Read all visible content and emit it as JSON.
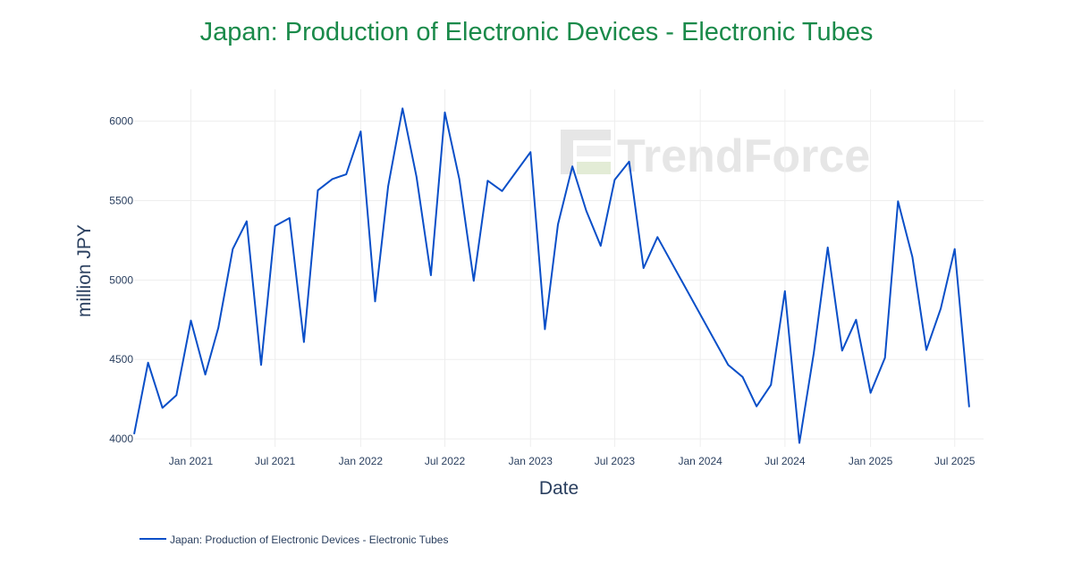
{
  "chart_data": {
    "type": "line",
    "title": "Japan: Production of Electronic Devices - Electronic Tubes",
    "xlabel": "Date",
    "ylabel": "million JPY",
    "ylim": [
      3950,
      6200
    ],
    "xlim": [
      "2020-09-01",
      "2025-09-01"
    ],
    "y_ticks": [
      4000,
      4500,
      5000,
      5500,
      6000
    ],
    "x_ticks": [
      {
        "date": "2021-01-01",
        "label": "Jan 2021"
      },
      {
        "date": "2021-07-01",
        "label": "Jul 2021"
      },
      {
        "date": "2022-01-01",
        "label": "Jan 2022"
      },
      {
        "date": "2022-07-01",
        "label": "Jul 2022"
      },
      {
        "date": "2023-01-01",
        "label": "Jan 2023"
      },
      {
        "date": "2023-07-01",
        "label": "Jul 2023"
      },
      {
        "date": "2024-01-01",
        "label": "Jan 2024"
      },
      {
        "date": "2024-07-01",
        "label": "Jul 2024"
      },
      {
        "date": "2025-01-01",
        "label": "Jan 2025"
      },
      {
        "date": "2025-07-01",
        "label": "Jul 2025"
      }
    ],
    "grid": true,
    "legend_position": "bottom-left",
    "series": [
      {
        "name": "Japan: Production of Electronic Devices - Electronic Tubes",
        "color": "#0a4fc8",
        "points": [
          [
            "2020-09-01",
            4030
          ],
          [
            "2020-10-01",
            4480
          ],
          [
            "2020-11-01",
            4195
          ],
          [
            "2020-12-01",
            4275
          ],
          [
            "2021-01-01",
            4745
          ],
          [
            "2021-02-01",
            4405
          ],
          [
            "2021-03-01",
            4700
          ],
          [
            "2021-04-01",
            5195
          ],
          [
            "2021-05-01",
            5370
          ],
          [
            "2021-06-01",
            4465
          ],
          [
            "2021-07-01",
            5340
          ],
          [
            "2021-08-01",
            5390
          ],
          [
            "2021-09-01",
            4610
          ],
          [
            "2021-10-01",
            5565
          ],
          [
            "2021-11-01",
            5635
          ],
          [
            "2021-12-01",
            5665
          ],
          [
            "2022-01-01",
            5935
          ],
          [
            "2022-02-01",
            4865
          ],
          [
            "2022-03-01",
            5590
          ],
          [
            "2022-04-01",
            6080
          ],
          [
            "2022-05-01",
            5650
          ],
          [
            "2022-06-01",
            5030
          ],
          [
            "2022-07-01",
            6055
          ],
          [
            "2022-08-01",
            5635
          ],
          [
            "2022-09-01",
            4995
          ],
          [
            "2022-10-01",
            5625
          ],
          [
            "2022-11-01",
            5560
          ],
          [
            "2022-12-01",
            5680
          ],
          [
            "2023-01-01",
            5805
          ],
          [
            "2023-02-01",
            4690
          ],
          [
            "2023-03-01",
            5350
          ],
          [
            "2023-04-01",
            5715
          ],
          [
            "2023-05-01",
            5435
          ],
          [
            "2023-06-01",
            5215
          ],
          [
            "2023-07-01",
            5630
          ],
          [
            "2023-08-01",
            5745
          ],
          [
            "2023-09-01",
            5075
          ],
          [
            "2023-10-01",
            5270
          ],
          [
            "2024-03-01",
            4465
          ],
          [
            "2024-04-01",
            4390
          ],
          [
            "2024-05-01",
            4205
          ],
          [
            "2024-06-01",
            4340
          ],
          [
            "2024-07-01",
            4930
          ],
          [
            "2024-08-01",
            3975
          ],
          [
            "2024-09-01",
            4540
          ],
          [
            "2024-10-01",
            5205
          ],
          [
            "2024-11-01",
            4555
          ],
          [
            "2024-12-01",
            4750
          ],
          [
            "2025-01-01",
            4290
          ],
          [
            "2025-02-01",
            4510
          ],
          [
            "2025-03-01",
            5495
          ],
          [
            "2025-04-01",
            5145
          ],
          [
            "2025-05-01",
            4560
          ],
          [
            "2025-06-01",
            4820
          ],
          [
            "2025-07-01",
            5195
          ],
          [
            "2025-08-01",
            4200
          ]
        ]
      }
    ]
  },
  "watermark": {
    "text": "TrendForce"
  },
  "colors": {
    "title": "#1a8a4a",
    "line": "#0a4fc8",
    "grid": "#eeeeee",
    "text": "#2a3f5f"
  }
}
